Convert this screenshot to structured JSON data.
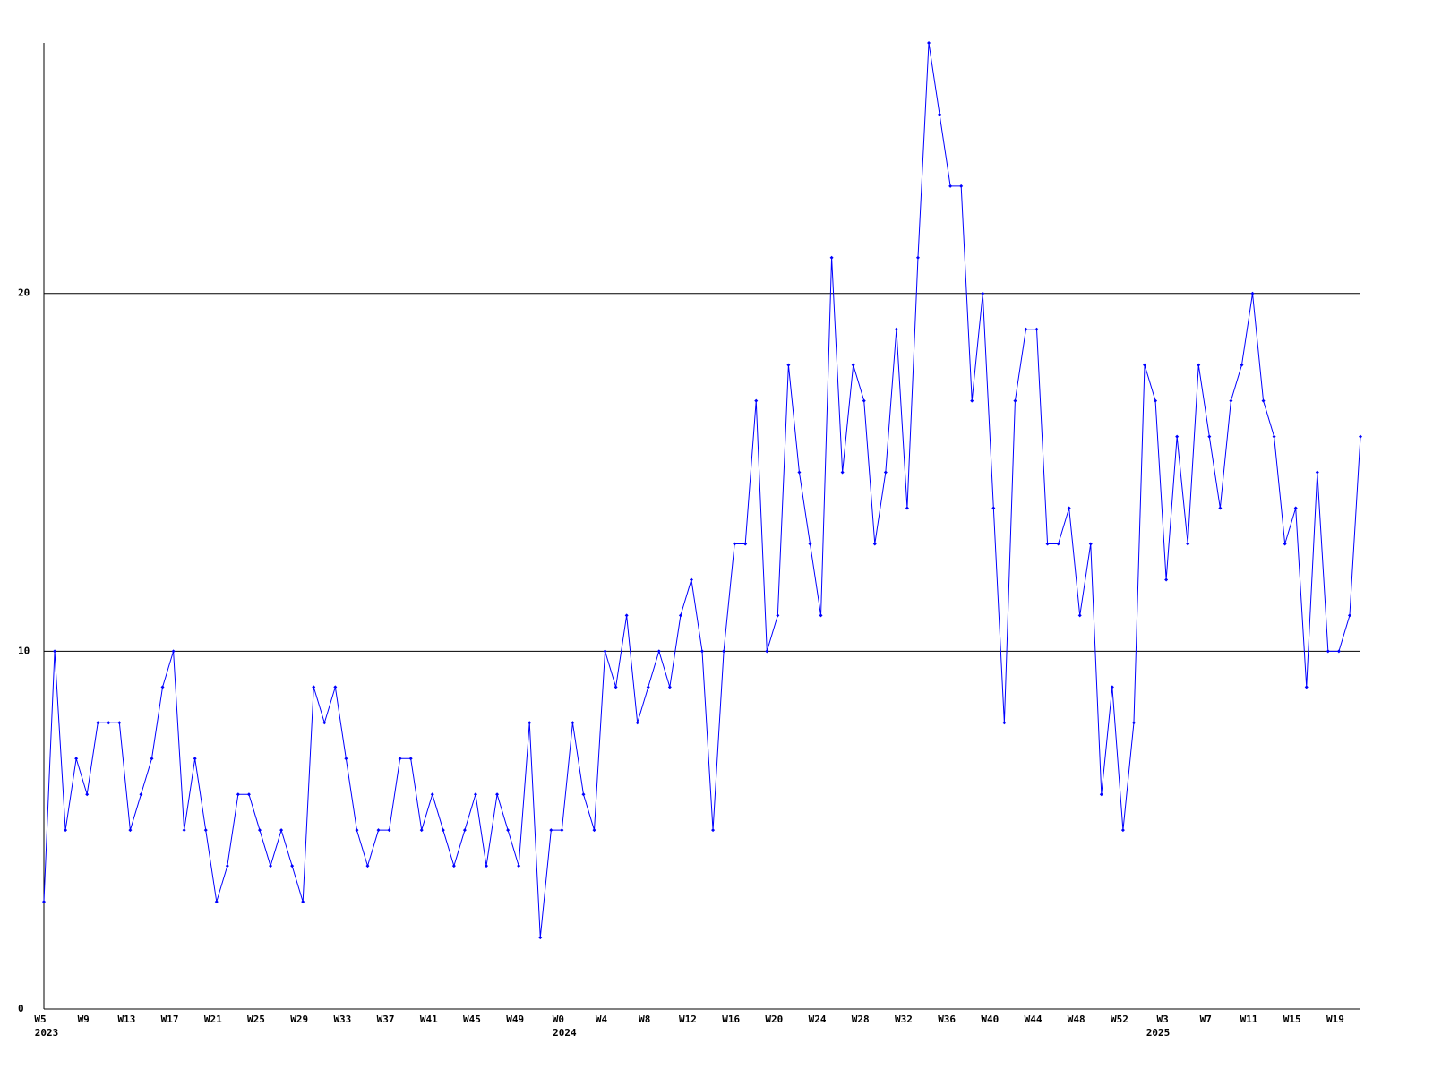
{
  "chart_data": {
    "type": "line",
    "categories": [
      "W5",
      null,
      null,
      null,
      "W9",
      null,
      null,
      null,
      "W13",
      null,
      null,
      null,
      "W17",
      null,
      null,
      null,
      "W21",
      null,
      null,
      null,
      "W25",
      null,
      null,
      null,
      "W29",
      null,
      null,
      null,
      "W33",
      null,
      null,
      null,
      "W37",
      null,
      null,
      null,
      "W41",
      null,
      null,
      null,
      "W45",
      null,
      null,
      null,
      "W49",
      null,
      null,
      null,
      "W0",
      null,
      null,
      null,
      "W4",
      null,
      null,
      null,
      "W8",
      null,
      null,
      null,
      "W12",
      null,
      null,
      null,
      "W16",
      null,
      null,
      null,
      "W20",
      null,
      null,
      null,
      "W24",
      null,
      null,
      null,
      "W28",
      null,
      null,
      null,
      "W32",
      null,
      null,
      null,
      "W36",
      null,
      null,
      null,
      "W40",
      null,
      null,
      null,
      "W44",
      null,
      null,
      null,
      "W48",
      null,
      null,
      null,
      "W52",
      null,
      null,
      null,
      "W3",
      null,
      null,
      null,
      "W7",
      null,
      null,
      null,
      "W11",
      null,
      null,
      null,
      "W15",
      null,
      null,
      null,
      "W19",
      null,
      null
    ],
    "category_groups": [
      "2023",
      null,
      null,
      null,
      null,
      null,
      null,
      null,
      null,
      null,
      null,
      null,
      null,
      null,
      null,
      null,
      null,
      null,
      null,
      null,
      null,
      null,
      null,
      null,
      null,
      null,
      null,
      null,
      null,
      null,
      null,
      null,
      null,
      null,
      null,
      null,
      null,
      null,
      null,
      null,
      null,
      null,
      null,
      null,
      null,
      null,
      null,
      null,
      "2024",
      null,
      null,
      null,
      null,
      null,
      null,
      null,
      null,
      null,
      null,
      null,
      null,
      null,
      null,
      null,
      null,
      null,
      null,
      null,
      null,
      null,
      null,
      null,
      null,
      null,
      null,
      null,
      null,
      null,
      null,
      null,
      null,
      null,
      null,
      null,
      null,
      null,
      null,
      null,
      null,
      null,
      null,
      null,
      null,
      null,
      null,
      null,
      null,
      null,
      null,
      null,
      null,
      null,
      null,
      "2025",
      null,
      null,
      null,
      null,
      null,
      null,
      null,
      null,
      null,
      null,
      null,
      null,
      null,
      null,
      null,
      null,
      null,
      null,
      null,
      null,
      null
    ],
    "series": [
      {
        "color": "#0000ff",
        "values": [
          3,
          10,
          5,
          7,
          6,
          8,
          8,
          8,
          5,
          6,
          7,
          9,
          10,
          5,
          7,
          5,
          3,
          4,
          6,
          6,
          5,
          4,
          5,
          4,
          3,
          9,
          8,
          9,
          7,
          5,
          4,
          5,
          5,
          7,
          7,
          5,
          6,
          5,
          4,
          5,
          6,
          4,
          6,
          5,
          4,
          8,
          2,
          5,
          5,
          8,
          6,
          5,
          10,
          9,
          11,
          8,
          9,
          10,
          9,
          11,
          12,
          10,
          5,
          10,
          13,
          13,
          17,
          10,
          11,
          18,
          15,
          13,
          11,
          21,
          15,
          18,
          17,
          13,
          15,
          19,
          14,
          21,
          27,
          25,
          23,
          23,
          17,
          20,
          14,
          8,
          17,
          19,
          19,
          13,
          13,
          14,
          11,
          13,
          6,
          9,
          5,
          8,
          18,
          17,
          12,
          16,
          13,
          18,
          16,
          14,
          17,
          18,
          20,
          17,
          16,
          13,
          14,
          9,
          15,
          10,
          10,
          11,
          16
        ]
      }
    ],
    "ylim": [
      0,
      27
    ],
    "yticks": [
      0,
      10,
      20
    ],
    "grid": true,
    "grid_color": "#000000"
  }
}
